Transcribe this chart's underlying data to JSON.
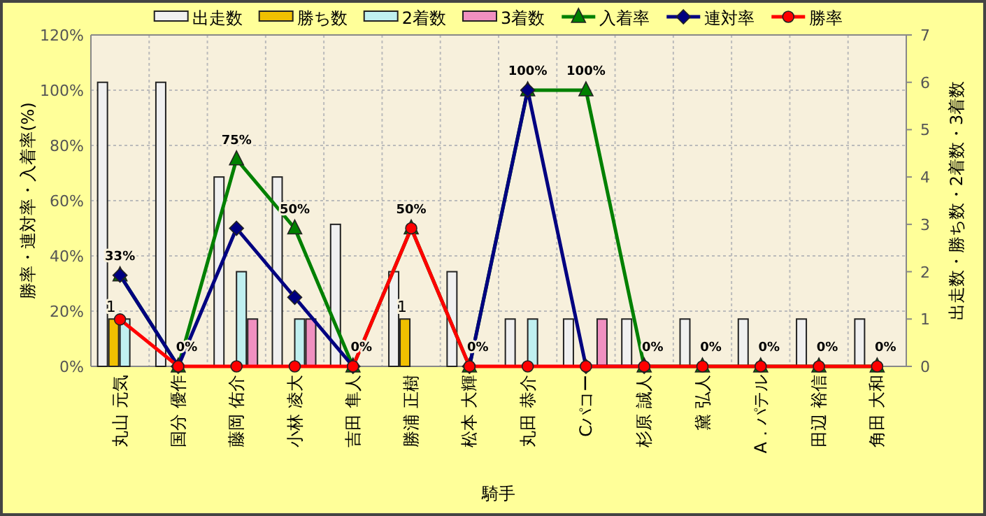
{
  "chart_data": {
    "type": "bar",
    "xlabel": "騎手",
    "ylabel": "勝率・連対率・入着率(%)",
    "y2label": "出走数・勝ち数・2着数・3着数",
    "categories": [
      "丸山 元気",
      "国分 優作",
      "藤岡 佑介",
      "小林 凌大",
      "吉田 隼人",
      "勝浦 正樹",
      "松本 大輝",
      "丸田 恭介",
      "Cパコー",
      "杉原 誠人",
      "黛 弘人",
      "A．パテル",
      "田辺 裕信",
      "角田 大和"
    ],
    "series": [
      {
        "name": "出走数",
        "axis": "y2",
        "color": "#f0f0f0",
        "values": [
          6,
          6,
          4,
          4,
          3,
          2,
          2,
          1,
          1,
          1,
          1,
          1,
          1,
          1
        ]
      },
      {
        "name": "勝ち数",
        "axis": "y2",
        "color": "#f0c000",
        "values": [
          1,
          0,
          0,
          0,
          0,
          1,
          0,
          0,
          0,
          0,
          0,
          0,
          0,
          0
        ],
        "value_labels": [
          "1",
          null,
          null,
          null,
          null,
          "1",
          null,
          null,
          null,
          null,
          null,
          null,
          null,
          null
        ]
      },
      {
        "name": "2着数",
        "axis": "y2",
        "color": "#c0f0f0",
        "values": [
          1,
          0,
          2,
          1,
          0,
          0,
          0,
          1,
          0,
          0,
          0,
          0,
          0,
          0
        ]
      },
      {
        "name": "3着数",
        "axis": "y2",
        "color": "#f090c0",
        "values": [
          0,
          0,
          1,
          1,
          0,
          0,
          0,
          0,
          1,
          0,
          0,
          0,
          0,
          0
        ]
      },
      {
        "name": "入着率",
        "type": "line",
        "axis": "y",
        "color": "#008000",
        "marker": "triangle",
        "values": [
          33,
          0,
          75,
          50,
          0,
          50,
          0,
          100,
          100,
          0,
          0,
          0,
          0,
          0
        ],
        "value_labels": [
          "33%",
          "0%",
          "75%",
          "50%",
          "0%",
          "50%",
          "0%",
          "100%",
          "100%",
          "0%",
          "0%",
          "0%",
          "0%",
          "0%"
        ]
      },
      {
        "name": "連対率",
        "type": "line",
        "axis": "y",
        "color": "#000080",
        "marker": "diamond",
        "values": [
          33,
          0,
          50,
          25,
          0,
          null,
          0,
          100,
          0,
          0,
          null,
          null,
          null,
          null
        ]
      },
      {
        "name": "勝率",
        "type": "line",
        "axis": "y",
        "color": "#ff0000",
        "marker": "circle",
        "values": [
          17,
          0,
          0,
          0,
          0,
          50,
          0,
          0,
          0,
          0,
          0,
          0,
          0,
          0
        ]
      }
    ],
    "ylim": [
      0,
      120
    ],
    "yticks": [
      {
        "value": 0,
        "label": "0%"
      },
      {
        "value": 20,
        "label": "20%"
      },
      {
        "value": 40,
        "label": "40%"
      },
      {
        "value": 60,
        "label": "60%"
      },
      {
        "value": 80,
        "label": "80%"
      },
      {
        "value": 100,
        "label": "100%"
      },
      {
        "value": 120,
        "label": "120%"
      }
    ],
    "y2lim": [
      0,
      7
    ],
    "y2ticks": [
      0,
      1,
      2,
      3,
      4,
      5,
      6,
      7
    ],
    "grid": true,
    "legend": "top"
  }
}
